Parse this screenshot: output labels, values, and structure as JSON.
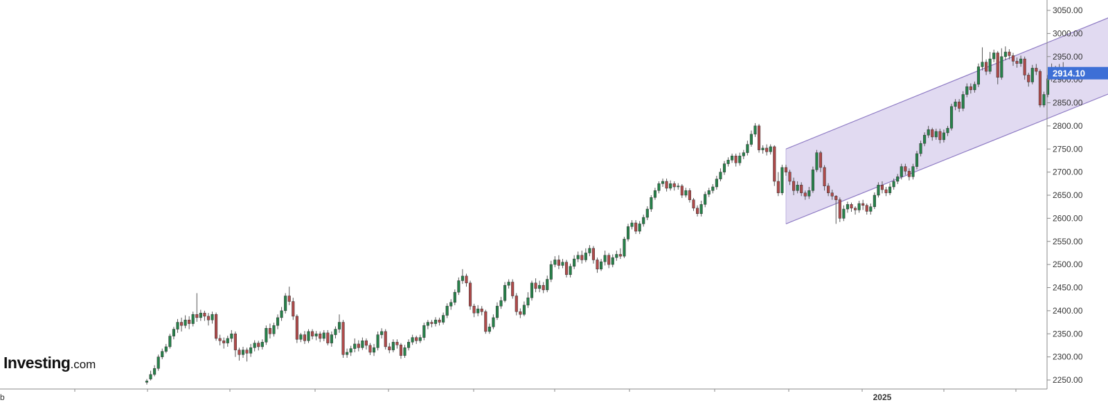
{
  "chart_data": {
    "type": "candlestick",
    "title": "",
    "xlabel": "",
    "ylabel": "",
    "ylim": [
      2235,
      3055
    ],
    "y_ticks": [
      "2250.00",
      "2300.00",
      "2350.00",
      "2400.00",
      "2450.00",
      "2500.00",
      "2550.00",
      "2600.00",
      "2650.00",
      "2700.00",
      "2750.00",
      "2800.00",
      "2850.00",
      "2900.00",
      "2950.00",
      "3000.00",
      "3050.00"
    ],
    "x_labels": [
      {
        "label": "b",
        "bar": -35
      },
      {
        "label": "2025",
        "bar": 191
      }
    ],
    "grid": false,
    "legend": "none",
    "last_price": "2914.10",
    "colors": {
      "up": "#26824a",
      "down": "#b04a4a",
      "wick": "#555555",
      "channel_fill": "#dcd3ee",
      "channel_line": "#8e7bc4",
      "price_tag": "#3d6fd6"
    },
    "channel": {
      "start_bar": 166,
      "end_bar": 253,
      "upper": [
        2750,
        3045
      ],
      "lower": [
        2588,
        2880
      ]
    },
    "candles": [
      [
        2245,
        2248,
        2240,
        2252
      ],
      [
        2252,
        2262,
        2249,
        2270
      ],
      [
        2262,
        2275,
        2258,
        2282
      ],
      [
        2275,
        2300,
        2270,
        2305
      ],
      [
        2300,
        2312,
        2295,
        2318
      ],
      [
        2312,
        2322,
        2308,
        2328
      ],
      [
        2322,
        2345,
        2318,
        2350
      ],
      [
        2345,
        2360,
        2338,
        2365
      ],
      [
        2360,
        2375,
        2352,
        2382
      ],
      [
        2375,
        2368,
        2355,
        2385
      ],
      [
        2368,
        2380,
        2362,
        2390
      ],
      [
        2380,
        2372,
        2360,
        2388
      ],
      [
        2372,
        2392,
        2366,
        2398
      ],
      [
        2392,
        2385,
        2376,
        2438
      ],
      [
        2385,
        2395,
        2378,
        2402
      ],
      [
        2395,
        2388,
        2378,
        2400
      ],
      [
        2388,
        2380,
        2368,
        2395
      ],
      [
        2380,
        2392,
        2372,
        2398
      ],
      [
        2392,
        2340,
        2335,
        2396
      ],
      [
        2340,
        2335,
        2325,
        2348
      ],
      [
        2335,
        2330,
        2318,
        2342
      ],
      [
        2330,
        2340,
        2322,
        2346
      ],
      [
        2340,
        2350,
        2332,
        2358
      ],
      [
        2350,
        2315,
        2300,
        2355
      ],
      [
        2315,
        2305,
        2292,
        2320
      ],
      [
        2305,
        2315,
        2298,
        2322
      ],
      [
        2315,
        2308,
        2290,
        2320
      ],
      [
        2308,
        2320,
        2300,
        2328
      ],
      [
        2320,
        2330,
        2312,
        2336
      ],
      [
        2330,
        2322,
        2314,
        2335
      ],
      [
        2322,
        2332,
        2316,
        2338
      ],
      [
        2332,
        2362,
        2326,
        2368
      ],
      [
        2362,
        2350,
        2340,
        2372
      ],
      [
        2350,
        2368,
        2344,
        2374
      ],
      [
        2368,
        2385,
        2360,
        2392
      ],
      [
        2385,
        2400,
        2378,
        2408
      ],
      [
        2400,
        2432,
        2394,
        2438
      ],
      [
        2432,
        2420,
        2412,
        2452
      ],
      [
        2420,
        2388,
        2380,
        2428
      ],
      [
        2388,
        2338,
        2330,
        2392
      ],
      [
        2338,
        2348,
        2332,
        2352
      ],
      [
        2348,
        2335,
        2328,
        2356
      ],
      [
        2335,
        2355,
        2330,
        2360
      ],
      [
        2355,
        2345,
        2338,
        2360
      ],
      [
        2345,
        2350,
        2336,
        2356
      ],
      [
        2350,
        2340,
        2332,
        2355
      ],
      [
        2340,
        2352,
        2334,
        2358
      ],
      [
        2352,
        2330,
        2325,
        2358
      ],
      [
        2330,
        2348,
        2322,
        2355
      ],
      [
        2348,
        2360,
        2340,
        2366
      ],
      [
        2360,
        2375,
        2352,
        2392
      ],
      [
        2375,
        2305,
        2298,
        2380
      ],
      [
        2305,
        2310,
        2298,
        2318
      ],
      [
        2310,
        2318,
        2302,
        2324
      ],
      [
        2318,
        2328,
        2310,
        2340
      ],
      [
        2328,
        2320,
        2312,
        2336
      ],
      [
        2320,
        2335,
        2315,
        2342
      ],
      [
        2335,
        2325,
        2316,
        2340
      ],
      [
        2325,
        2310,
        2304,
        2330
      ],
      [
        2310,
        2320,
        2302,
        2328
      ],
      [
        2320,
        2348,
        2314,
        2355
      ],
      [
        2348,
        2355,
        2340,
        2362
      ],
      [
        2355,
        2322,
        2316,
        2360
      ],
      [
        2322,
        2315,
        2308,
        2330
      ],
      [
        2315,
        2332,
        2310,
        2338
      ],
      [
        2332,
        2326,
        2318,
        2338
      ],
      [
        2326,
        2303,
        2296,
        2330
      ],
      [
        2303,
        2320,
        2298,
        2326
      ],
      [
        2320,
        2332,
        2314,
        2338
      ],
      [
        2332,
        2342,
        2326,
        2348
      ],
      [
        2342,
        2335,
        2328,
        2346
      ],
      [
        2335,
        2342,
        2330,
        2348
      ],
      [
        2342,
        2368,
        2336,
        2374
      ],
      [
        2368,
        2375,
        2360,
        2380
      ],
      [
        2375,
        2372,
        2364,
        2380
      ],
      [
        2372,
        2380,
        2366,
        2386
      ],
      [
        2380,
        2375,
        2368,
        2385
      ],
      [
        2375,
        2390,
        2370,
        2396
      ],
      [
        2390,
        2410,
        2384,
        2416
      ],
      [
        2410,
        2418,
        2402,
        2425
      ],
      [
        2418,
        2440,
        2412,
        2446
      ],
      [
        2440,
        2465,
        2434,
        2472
      ],
      [
        2465,
        2475,
        2458,
        2490
      ],
      [
        2475,
        2460,
        2452,
        2480
      ],
      [
        2460,
        2410,
        2402,
        2465
      ],
      [
        2410,
        2395,
        2386,
        2415
      ],
      [
        2395,
        2404,
        2388,
        2412
      ],
      [
        2404,
        2398,
        2390,
        2410
      ],
      [
        2398,
        2355,
        2350,
        2402
      ],
      [
        2355,
        2365,
        2350,
        2372
      ],
      [
        2365,
        2385,
        2360,
        2392
      ],
      [
        2385,
        2410,
        2380,
        2418
      ],
      [
        2410,
        2422,
        2404,
        2430
      ],
      [
        2422,
        2455,
        2418,
        2462
      ],
      [
        2455,
        2462,
        2448,
        2468
      ],
      [
        2462,
        2432,
        2426,
        2468
      ],
      [
        2432,
        2398,
        2390,
        2438
      ],
      [
        2398,
        2392,
        2384,
        2405
      ],
      [
        2392,
        2412,
        2388,
        2420
      ],
      [
        2412,
        2428,
        2406,
        2440
      ],
      [
        2428,
        2460,
        2422,
        2465
      ],
      [
        2460,
        2448,
        2440,
        2470
      ],
      [
        2448,
        2455,
        2440,
        2465
      ],
      [
        2455,
        2445,
        2438,
        2462
      ],
      [
        2445,
        2468,
        2440,
        2476
      ],
      [
        2468,
        2500,
        2462,
        2508
      ],
      [
        2500,
        2510,
        2494,
        2518
      ],
      [
        2510,
        2498,
        2490,
        2520
      ],
      [
        2498,
        2505,
        2492,
        2512
      ],
      [
        2505,
        2478,
        2472,
        2510
      ],
      [
        2478,
        2496,
        2472,
        2502
      ],
      [
        2496,
        2512,
        2490,
        2520
      ],
      [
        2512,
        2520,
        2505,
        2528
      ],
      [
        2520,
        2510,
        2502,
        2530
      ],
      [
        2510,
        2525,
        2505,
        2535
      ],
      [
        2525,
        2535,
        2518,
        2542
      ],
      [
        2535,
        2510,
        2502,
        2540
      ],
      [
        2510,
        2490,
        2482,
        2515
      ],
      [
        2490,
        2506,
        2486,
        2512
      ],
      [
        2506,
        2520,
        2498,
        2530
      ],
      [
        2520,
        2500,
        2492,
        2525
      ],
      [
        2500,
        2515,
        2494,
        2522
      ],
      [
        2515,
        2522,
        2508,
        2530
      ],
      [
        2522,
        2518,
        2512,
        2535
      ],
      [
        2518,
        2555,
        2514,
        2560
      ],
      [
        2555,
        2582,
        2550,
        2588
      ],
      [
        2582,
        2590,
        2576,
        2596
      ],
      [
        2590,
        2572,
        2566,
        2596
      ],
      [
        2572,
        2588,
        2566,
        2594
      ],
      [
        2588,
        2602,
        2582,
        2608
      ],
      [
        2602,
        2620,
        2596,
        2626
      ],
      [
        2620,
        2645,
        2614,
        2650
      ],
      [
        2645,
        2660,
        2640,
        2666
      ],
      [
        2660,
        2675,
        2654,
        2680
      ],
      [
        2675,
        2680,
        2668,
        2686
      ],
      [
        2680,
        2665,
        2658,
        2686
      ],
      [
        2665,
        2675,
        2660,
        2682
      ],
      [
        2675,
        2668,
        2660,
        2680
      ],
      [
        2668,
        2670,
        2662,
        2676
      ],
      [
        2670,
        2650,
        2644,
        2674
      ],
      [
        2650,
        2660,
        2645,
        2666
      ],
      [
        2660,
        2640,
        2634,
        2665
      ],
      [
        2640,
        2622,
        2616,
        2644
      ],
      [
        2622,
        2610,
        2604,
        2628
      ],
      [
        2610,
        2630,
        2604,
        2638
      ],
      [
        2630,
        2652,
        2624,
        2658
      ],
      [
        2652,
        2660,
        2646,
        2666
      ],
      [
        2660,
        2668,
        2654,
        2674
      ],
      [
        2668,
        2685,
        2662,
        2692
      ],
      [
        2685,
        2700,
        2680,
        2708
      ],
      [
        2700,
        2718,
        2694,
        2724
      ],
      [
        2718,
        2726,
        2712,
        2732
      ],
      [
        2726,
        2735,
        2720,
        2740
      ],
      [
        2735,
        2720,
        2712,
        2740
      ],
      [
        2720,
        2735,
        2714,
        2742
      ],
      [
        2735,
        2742,
        2728,
        2748
      ],
      [
        2742,
        2760,
        2736,
        2768
      ],
      [
        2760,
        2782,
        2755,
        2790
      ],
      [
        2782,
        2800,
        2776,
        2806
      ],
      [
        2800,
        2748,
        2742,
        2804
      ],
      [
        2748,
        2752,
        2740,
        2758
      ],
      [
        2752,
        2744,
        2736,
        2760
      ],
      [
        2744,
        2755,
        2738,
        2760
      ],
      [
        2755,
        2680,
        2670,
        2758
      ],
      [
        2680,
        2655,
        2648,
        2700
      ],
      [
        2655,
        2710,
        2650,
        2716
      ],
      [
        2710,
        2700,
        2692,
        2716
      ]
    ]
  }
}
